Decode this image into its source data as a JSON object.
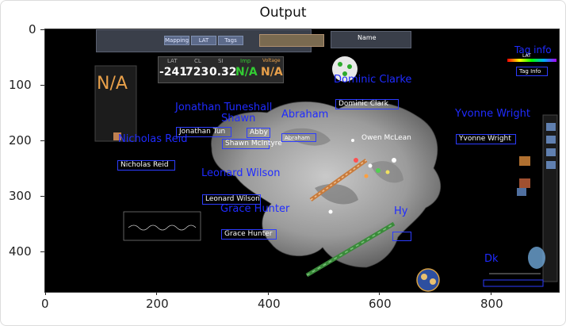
{
  "title": "Output",
  "x_ticks": [
    "0",
    "200",
    "400",
    "600",
    "800"
  ],
  "y_ticks": [
    "0",
    "100",
    "200",
    "300",
    "400"
  ],
  "readout": {
    "lat_label": "LAT",
    "cl_label": "CL",
    "si_label": "SI",
    "imp_label": "Imp",
    "v_label": "Voltage",
    "lat_value": "-241",
    "cl_value": "723",
    "si_value": "0.32",
    "imp_value": "N/A",
    "v_value": "N/A"
  },
  "side_na": "N/A",
  "tag_label": "Tag info",
  "tag_small": "Tag Info",
  "mode_label": "Name",
  "lat_bar": "LAT",
  "names": {
    "dominic": "Dominic Clarke",
    "jonathan": "Jonathan Tuneshall",
    "shawn_top": "Shawn",
    "abraham": "Abraham",
    "nicholas": "Nicholas Reid",
    "leonard": "Leonard Wilson",
    "grace": "Grace Hunter",
    "yvonne": "Yvonne Wright",
    "hy": "Hy",
    "dk": "Dk"
  },
  "boxes": {
    "dominic_box": "Dominic Clark",
    "jonathan_box": "Jonathan Tun",
    "abby_box": "Abby",
    "shawn_box": "Shawn McIntyre",
    "abraham_box": "Abraham",
    "nicholas_box": "Nicholas Reid",
    "leonard_box": "Leonard Wilson",
    "grace_box": "Grace Hunter",
    "yvonne_box": "Yvonne Wright",
    "owen_box": "Owen McLean"
  },
  "toolbar": {
    "b1": "Mapping",
    "b2": "LAT",
    "b3": "Tags"
  },
  "colors": {
    "label_blue": "#1f2bff",
    "mesh": "#9a9a9a",
    "na_orange": "#e8a04a",
    "imp_green": "#33cc33"
  }
}
